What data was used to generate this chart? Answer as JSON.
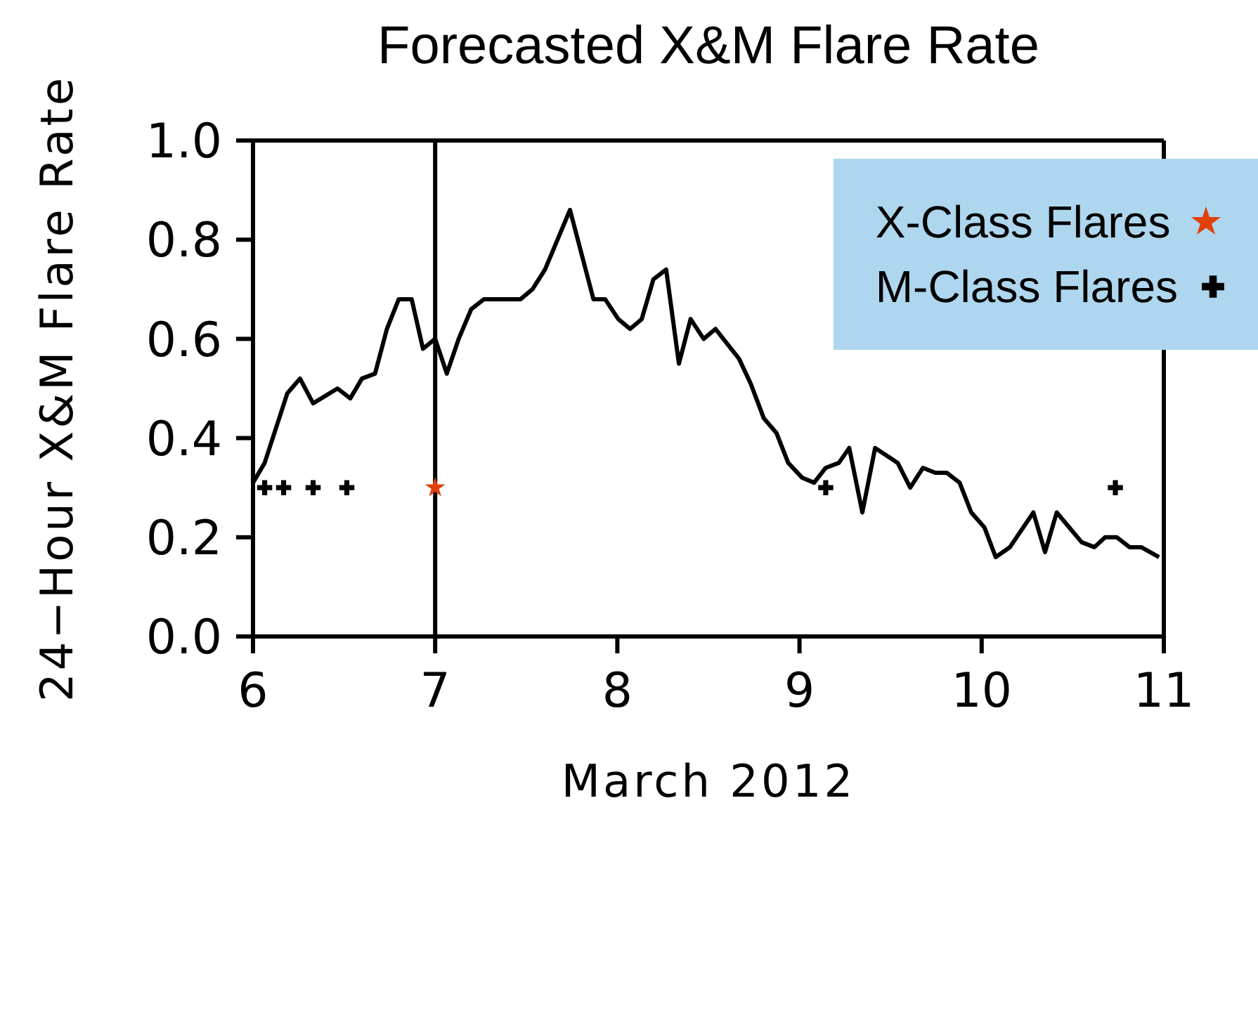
{
  "chart_data": {
    "type": "line",
    "title": "Forecasted X&M Flare Rate",
    "xlabel": "March 2012",
    "ylabel": "24−Hour X&M Flare Rate",
    "xlim": [
      6,
      11
    ],
    "xticks": [
      6,
      7,
      8,
      9,
      10,
      11
    ],
    "ylim": [
      0,
      1
    ],
    "yticks": [
      {
        "value": 0,
        "label": "0.0"
      },
      0.2,
      0.4,
      0.6,
      0.8,
      {
        "value": 1,
        "label": "1.0"
      }
    ],
    "grid": false,
    "legend": "top right",
    "ref_lines": [
      {
        "axis": "x",
        "value": 7,
        "color": "#000000",
        "line_style": "solid"
      }
    ],
    "series": [
      {
        "color": "#000000",
        "marker": "none",
        "line_style": "solid",
        "x": [
          6.0,
          6.064,
          6.188,
          6.258,
          6.33,
          6.464,
          6.534,
          6.598,
          6.67,
          6.735,
          6.8,
          6.871,
          6.933,
          7.0,
          7.064,
          7.129,
          7.198,
          7.268,
          7.469,
          7.534,
          7.603,
          7.74,
          7.869,
          7.933,
          8.005,
          8.07,
          8.134,
          8.198,
          8.268,
          8.338,
          8.402,
          8.474,
          8.539,
          8.668,
          8.732,
          8.804,
          8.874,
          8.938,
          9.015,
          9.08,
          9.144,
          9.216,
          9.273,
          9.345,
          9.415,
          9.539,
          9.608,
          9.678,
          9.745,
          9.809,
          9.879,
          9.943,
          10.015,
          10.077,
          10.155,
          10.284,
          10.348,
          10.412,
          10.549,
          10.619,
          10.678,
          10.742,
          10.812,
          10.876,
          10.974
        ],
        "values": [
          0.31,
          0.35,
          0.49,
          0.52,
          0.47,
          0.5,
          0.48,
          0.52,
          0.53,
          0.62,
          0.68,
          0.68,
          0.58,
          0.6,
          0.53,
          0.6,
          0.66,
          0.68,
          0.68,
          0.7,
          0.74,
          0.86,
          0.68,
          0.68,
          0.64,
          0.62,
          0.64,
          0.72,
          0.74,
          0.55,
          0.64,
          0.6,
          0.62,
          0.56,
          0.51,
          0.44,
          0.41,
          0.35,
          0.32,
          0.31,
          0.34,
          0.35,
          0.38,
          0.25,
          0.38,
          0.35,
          0.3,
          0.34,
          0.33,
          0.33,
          0.31,
          0.25,
          0.22,
          0.16,
          0.18,
          0.25,
          0.17,
          0.25,
          0.19,
          0.18,
          0.2,
          0.2,
          0.18,
          0.18,
          0.16
        ]
      },
      {
        "type": "scatter",
        "name": "X-Class Flares",
        "color": "#e0400a",
        "marker": "star",
        "x": [
          7.0
        ],
        "values": [
          0.3
        ]
      },
      {
        "type": "scatter",
        "name": "M-Class Flares",
        "color": "#000000",
        "marker": "cross",
        "x": [
          6.064,
          6.168,
          6.33,
          6.515,
          9.144,
          10.734
        ],
        "values": [
          0.3,
          0.3,
          0.3,
          0.3,
          0.3,
          0.3
        ]
      }
    ]
  }
}
